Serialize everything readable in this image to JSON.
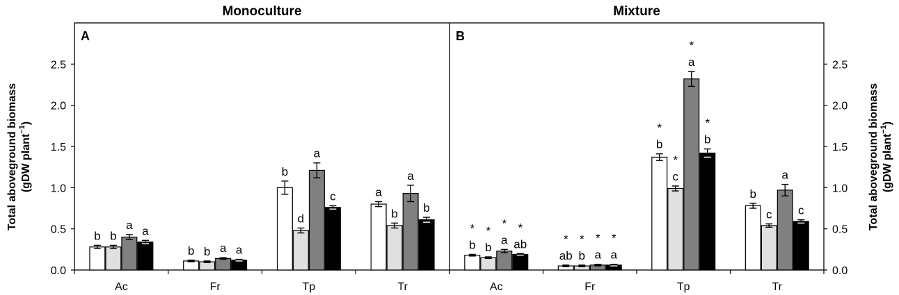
{
  "chart_data": [
    {
      "type": "bar",
      "title": "Monoculture",
      "panel_label": "A",
      "categories": [
        "Ac",
        "Fr",
        "Tp",
        "Tr"
      ],
      "ylabel": "Total aboveground biomass",
      "ylabel_unit": "(gDW plant",
      "ylabel_exp": "−1",
      "ylabel_close": ")",
      "ylim": [
        0,
        3.0
      ],
      "yticks": [
        "0.0",
        "0.5",
        "1.0",
        "1.5",
        "2.0",
        "2.5"
      ],
      "ytick_values": [
        0,
        0.5,
        1.0,
        1.5,
        2.0,
        2.5
      ],
      "series_fills": [
        "#ffffff",
        "#e0e0e0",
        "#808080",
        "#000000"
      ],
      "series": [
        {
          "values": [
            0.28,
            0.11,
            1.0,
            0.8
          ],
          "errors": [
            0.02,
            0.01,
            0.08,
            0.03
          ],
          "letters": [
            "b",
            "b",
            "b",
            "a"
          ],
          "stars": [
            "",
            "",
            "",
            ""
          ]
        },
        {
          "values": [
            0.28,
            0.1,
            0.48,
            0.54
          ],
          "errors": [
            0.02,
            0.01,
            0.03,
            0.03
          ],
          "letters": [
            "b",
            "b",
            "d",
            "b"
          ],
          "stars": [
            "",
            "",
            "",
            ""
          ]
        },
        {
          "values": [
            0.4,
            0.14,
            1.21,
            0.93
          ],
          "errors": [
            0.03,
            0.01,
            0.09,
            0.1
          ],
          "letters": [
            "a",
            "a",
            "a",
            "a"
          ],
          "stars": [
            "",
            "",
            "",
            ""
          ]
        },
        {
          "values": [
            0.34,
            0.12,
            0.76,
            0.61
          ],
          "errors": [
            0.02,
            0.01,
            0.02,
            0.03
          ],
          "letters": [
            "a",
            "a",
            "c",
            "b"
          ],
          "stars": [
            "",
            "",
            "",
            ""
          ]
        }
      ]
    },
    {
      "type": "bar",
      "title": "Mixture",
      "panel_label": "B",
      "categories": [
        "Ac",
        "Fr",
        "Tp",
        "Tr"
      ],
      "ylabel": "Total aboveground biomass",
      "ylabel_unit": "(gDW plant",
      "ylabel_exp": "−1",
      "ylabel_close": ")",
      "ylim": [
        0,
        3.0
      ],
      "yticks": [
        "0.0",
        "0.5",
        "1.0",
        "1.5",
        "2.0",
        "2.5"
      ],
      "ytick_values": [
        0,
        0.5,
        1.0,
        1.5,
        2.0,
        2.5
      ],
      "series_fills": [
        "#ffffff",
        "#e0e0e0",
        "#808080",
        "#000000"
      ],
      "series": [
        {
          "values": [
            0.18,
            0.05,
            1.37,
            0.78
          ],
          "errors": [
            0.01,
            0.01,
            0.04,
            0.03
          ],
          "letters": [
            "b",
            "ab",
            "b",
            "b"
          ],
          "stars": [
            "*",
            "*",
            "*",
            ""
          ]
        },
        {
          "values": [
            0.15,
            0.05,
            0.99,
            0.54
          ],
          "errors": [
            0.01,
            0.01,
            0.03,
            0.02
          ],
          "letters": [
            "b",
            "b",
            "c",
            "c"
          ],
          "stars": [
            "*",
            "*",
            "*",
            ""
          ]
        },
        {
          "values": [
            0.23,
            0.06,
            2.32,
            0.97
          ],
          "errors": [
            0.02,
            0.01,
            0.09,
            0.07
          ],
          "letters": [
            "a",
            "a",
            "a",
            "a"
          ],
          "stars": [
            "*",
            "*",
            "*",
            ""
          ]
        },
        {
          "values": [
            0.19,
            0.06,
            1.42,
            0.59
          ],
          "errors": [
            0.01,
            0.01,
            0.05,
            0.02
          ],
          "letters": [
            "ab",
            "a",
            "b",
            "c"
          ],
          "stars": [
            "*",
            "*",
            "*",
            ""
          ]
        }
      ]
    }
  ]
}
